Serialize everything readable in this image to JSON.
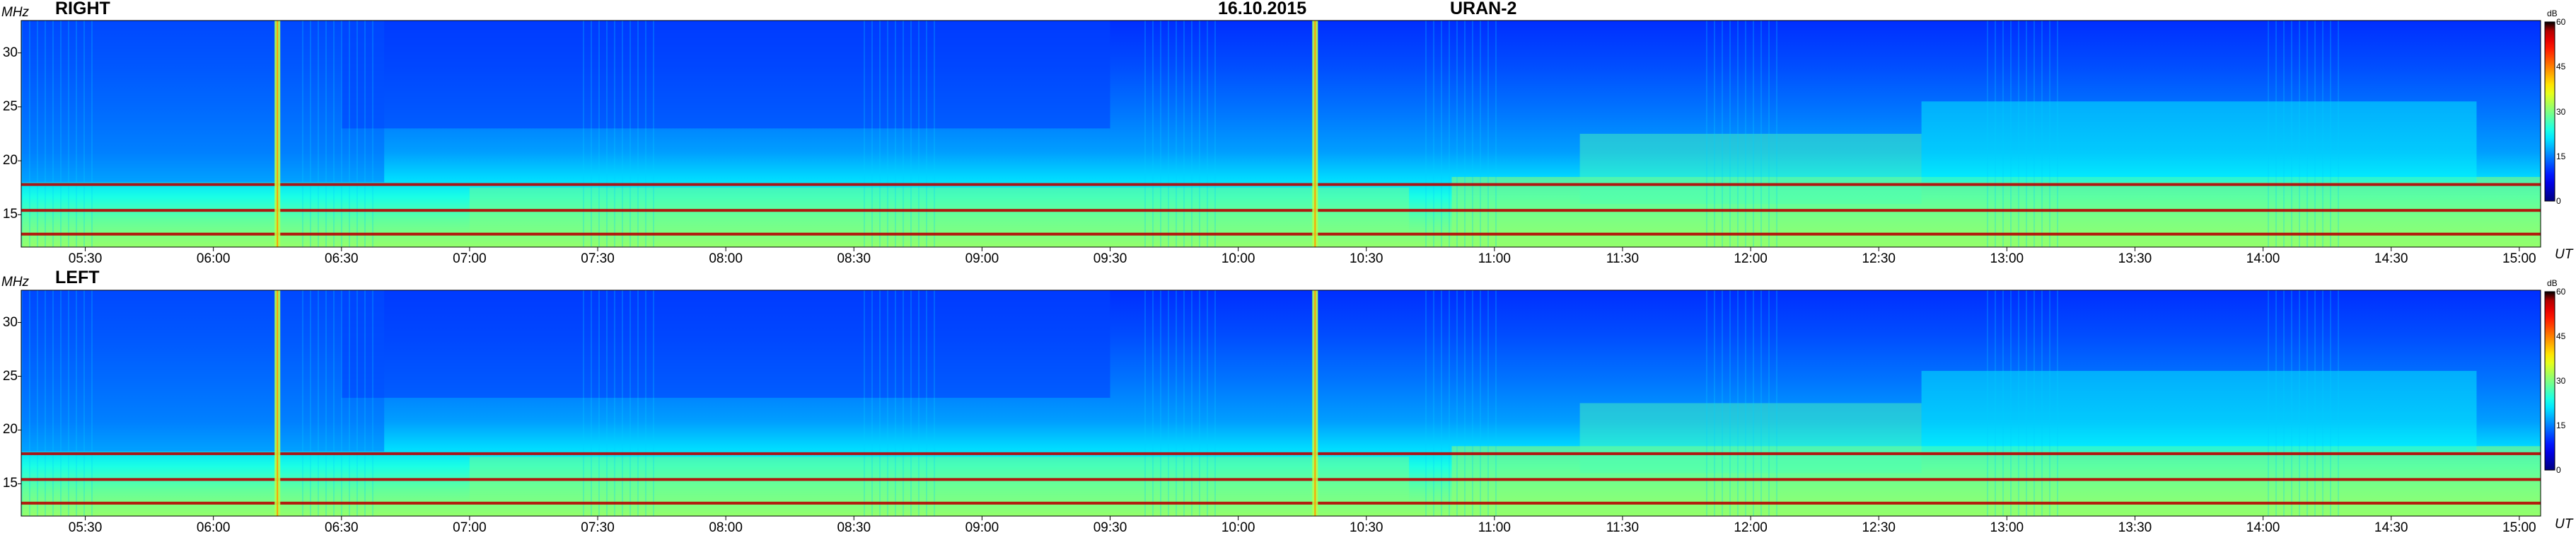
{
  "header": {
    "date": "16.10.2015",
    "instrument": "URAN-2"
  },
  "chart_data": [
    {
      "type": "heatmap",
      "title": "RIGHT",
      "ylabel": "MHz",
      "xlabel": "UT",
      "colorbar_unit": "dB",
      "colorbar_ticks": [
        "0",
        "15",
        "30",
        "45",
        "60"
      ],
      "colorbar_range": [
        0,
        60
      ],
      "yticks": [
        15,
        20,
        25,
        30
      ],
      "ytick_labels": [
        "15",
        "20",
        "25",
        "30"
      ],
      "ylim": [
        12,
        33
      ],
      "xticks": [
        "05:30",
        "06:00",
        "06:30",
        "07:00",
        "07:30",
        "08:00",
        "08:30",
        "09:00",
        "09:30",
        "10:00",
        "10:30",
        "11:00",
        "11:30",
        "12:00",
        "12:30",
        "13:00",
        "13:30",
        "14:00",
        "14:30",
        "15:00"
      ],
      "xlim": [
        "05:15",
        "15:05"
      ],
      "bursts_ut": [
        "06:15",
        "10:18"
      ],
      "bands_mhz": [
        13.2,
        15.4,
        17.8
      ]
    },
    {
      "type": "heatmap",
      "title": "LEFT",
      "ylabel": "MHz",
      "xlabel": "UT",
      "colorbar_unit": "dB",
      "colorbar_ticks": [
        "0",
        "15",
        "30",
        "45",
        "60"
      ],
      "colorbar_range": [
        0,
        60
      ],
      "yticks": [
        15,
        20,
        25,
        30
      ],
      "ytick_labels": [
        "15",
        "20",
        "25",
        "30"
      ],
      "ylim": [
        12,
        33
      ],
      "xticks": [
        "05:30",
        "06:00",
        "06:30",
        "07:00",
        "07:30",
        "08:00",
        "08:30",
        "09:00",
        "09:30",
        "10:00",
        "10:30",
        "11:00",
        "11:30",
        "12:00",
        "12:30",
        "13:00",
        "13:30",
        "14:00",
        "14:30",
        "15:00"
      ],
      "xlim": [
        "05:15",
        "15:05"
      ],
      "bursts_ut": [
        "06:15",
        "10:18"
      ],
      "bands_mhz": [
        13.2,
        15.4,
        17.8
      ]
    }
  ]
}
